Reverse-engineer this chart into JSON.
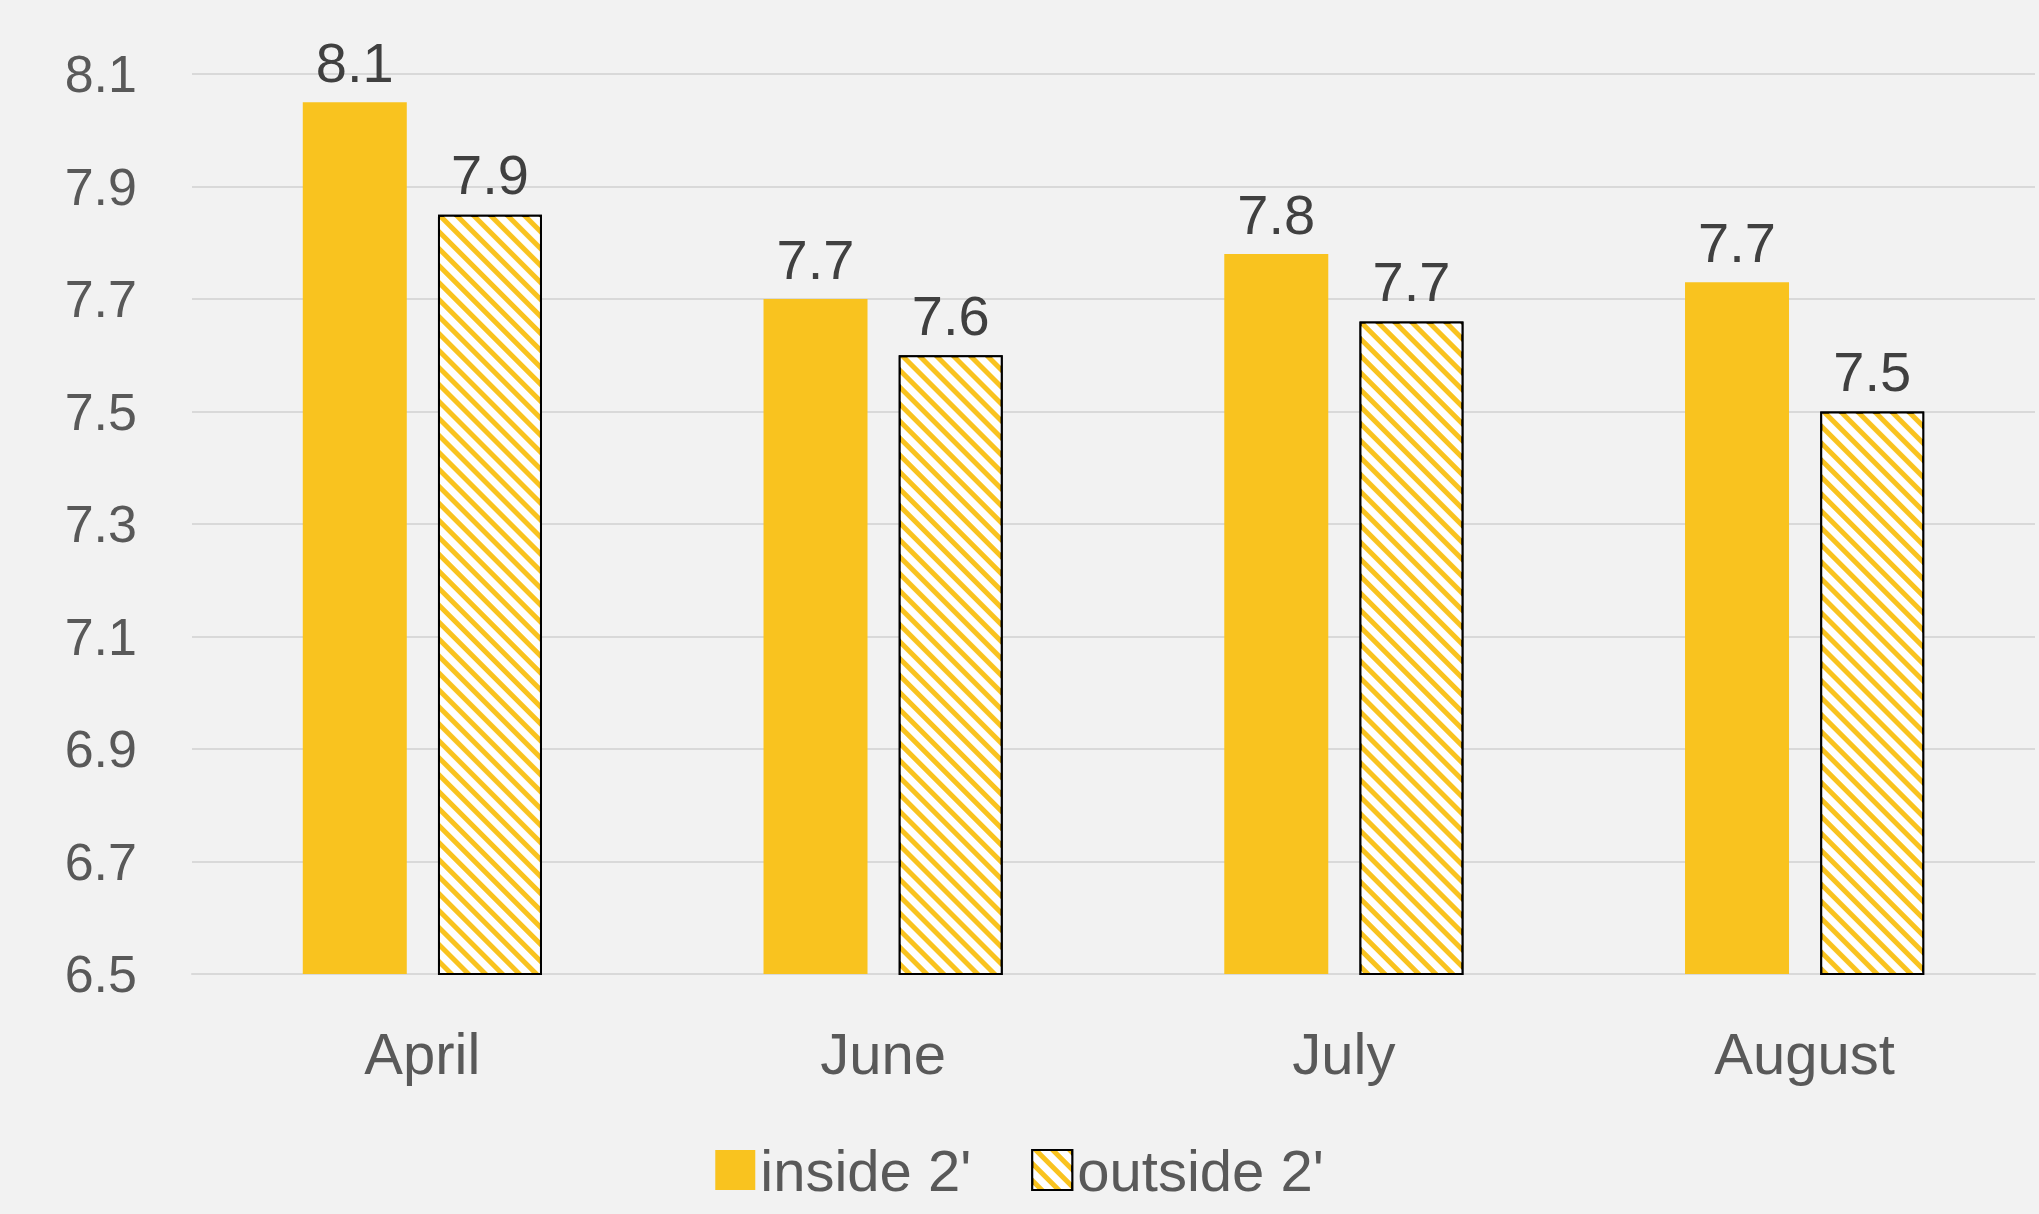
{
  "chart_data": {
    "type": "bar",
    "categories": [
      "April",
      "June",
      "July",
      "August"
    ],
    "series": [
      {
        "name": "inside 2'",
        "color": "#f9c31f",
        "values": [
          8.05,
          7.7,
          7.78,
          7.73
        ],
        "value_labels": [
          "8.1",
          "7.7",
          "7.8",
          "7.7"
        ]
      },
      {
        "name": "outside 2'",
        "color": "#f9c31f",
        "values": [
          7.85,
          7.6,
          7.66,
          7.5
        ],
        "value_labels": [
          "7.9",
          "7.6",
          "7.7",
          "7.5"
        ]
      }
    ],
    "ylim": [
      6.5,
      8.1
    ],
    "yticks": [
      6.5,
      6.7,
      6.9,
      7.1,
      7.3,
      7.5,
      7.7,
      7.9,
      8.1
    ],
    "grid": "y",
    "legend": "bottom"
  }
}
